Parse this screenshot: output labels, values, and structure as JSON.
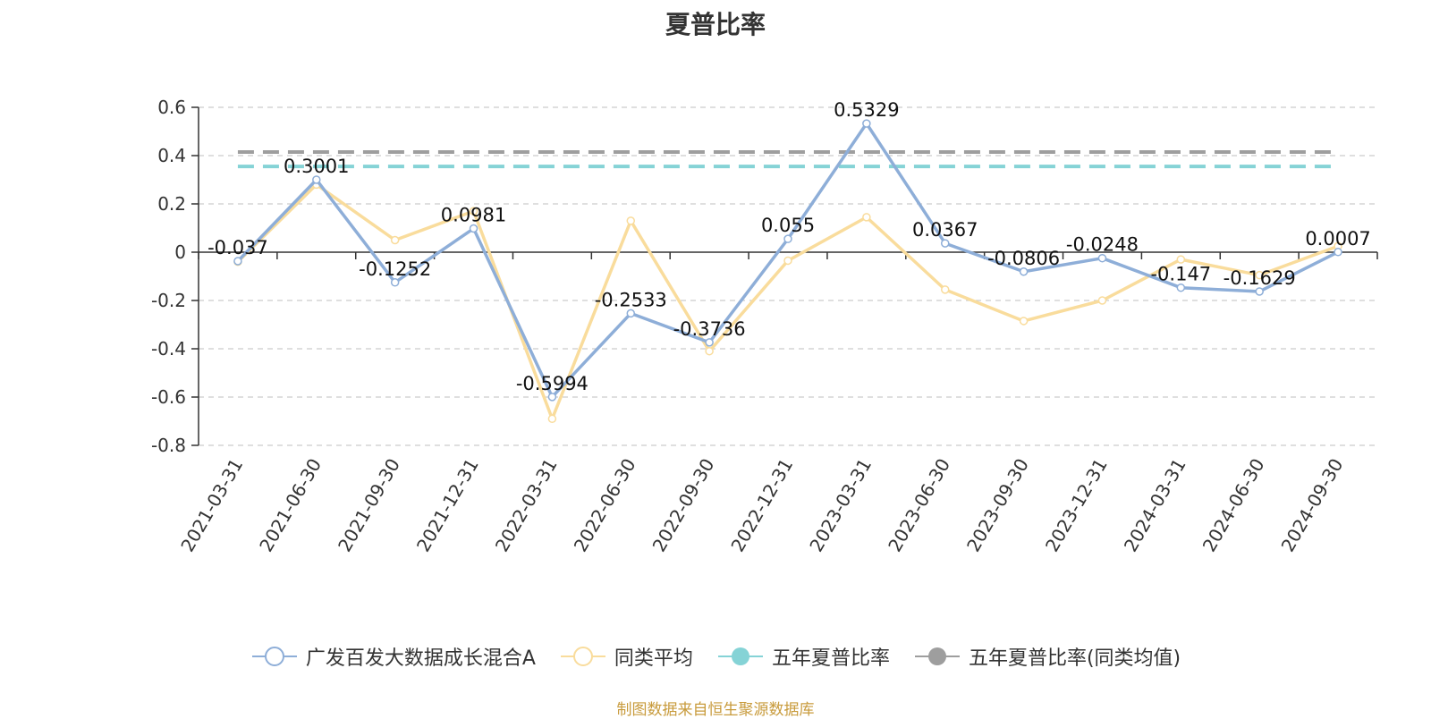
{
  "chart_data": {
    "type": "line",
    "title": "夏普比率",
    "categories": [
      "2021-03-31",
      "2021-06-30",
      "2021-09-30",
      "2021-12-31",
      "2022-03-31",
      "2022-06-30",
      "2022-09-30",
      "2022-12-31",
      "2023-03-31",
      "2023-06-30",
      "2023-09-30",
      "2023-12-31",
      "2024-03-31",
      "2024-06-30",
      "2024-09-30"
    ],
    "ylim": [
      -0.8,
      0.6
    ],
    "yticks": [
      "0.6",
      "0.4",
      "0.2",
      "0",
      "-0.2",
      "-0.4",
      "-0.6",
      "-0.8"
    ],
    "grid": true,
    "legend_position": "bottom",
    "series": [
      {
        "name": "广发百发大数据成长混合A",
        "color": "#8eaed8",
        "values": [
          -0.037,
          0.3001,
          -0.1252,
          0.0981,
          -0.5994,
          -0.2533,
          -0.3736,
          0.055,
          0.5329,
          0.0367,
          -0.0806,
          -0.0248,
          -0.147,
          -0.1629,
          0.0007
        ],
        "labels": [
          "-0.037",
          "0.3001",
          "-0.1252",
          "0.0981",
          "-0.5994",
          "-0.2533",
          "-0.3736",
          "0.055",
          "0.5329",
          "0.0367",
          "-0.0806",
          "-0.0248",
          "-0.147",
          "-0.1629",
          "0.0007"
        ]
      },
      {
        "name": "同类平均",
        "color": "#f9dc9c",
        "values": [
          -0.04,
          0.28,
          0.05,
          0.17,
          -0.69,
          0.13,
          -0.41,
          -0.035,
          0.145,
          -0.155,
          -0.285,
          -0.2,
          -0.03,
          -0.095,
          0.025
        ]
      },
      {
        "name": "五年夏普比率",
        "color": "#85d3d6",
        "type": "constant-dashed",
        "value": 0.355
      },
      {
        "name": "五年夏普比率(同类均值)",
        "color": "#9e9e9e",
        "type": "constant-dashed",
        "value": 0.415
      }
    ]
  },
  "source_note": "制图数据来自恒生聚源数据库"
}
